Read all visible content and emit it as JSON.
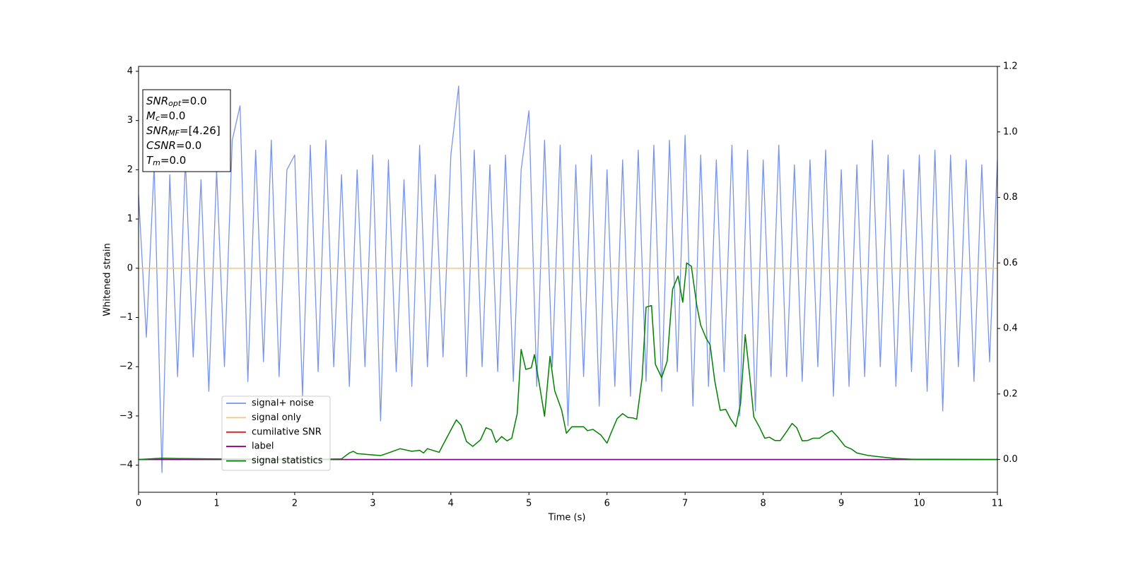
{
  "chart_data": {
    "type": "line",
    "xlabel": "Time (s)",
    "ylabel": "Whitened strain",
    "xlim": [
      0,
      11
    ],
    "xticks": [
      0,
      1,
      2,
      3,
      4,
      5,
      6,
      7,
      8,
      9,
      10,
      11
    ],
    "ylim": [
      -4.55,
      4.1
    ],
    "yticks": [
      {
        "value": -4,
        "label": "−4"
      },
      {
        "value": -3,
        "label": "−3"
      },
      {
        "value": -2,
        "label": "−2"
      },
      {
        "value": -1,
        "label": "−1"
      },
      0,
      1,
      2,
      3,
      4
    ],
    "y2lim": [
      -0.1,
      1.2
    ],
    "y2ticks": [
      {
        "value": 0,
        "label": "0.0"
      },
      {
        "value": 0.2,
        "label": "0.2"
      },
      {
        "value": 0.4,
        "label": "0.4"
      },
      {
        "value": 0.6,
        "label": "0.6"
      },
      {
        "value": 0.8,
        "label": "0.8"
      },
      {
        "value": 1.0,
        "label": "1.0"
      },
      {
        "value": 1.2,
        "label": "1.2"
      }
    ],
    "grid": false,
    "legend": "lower left",
    "annotation": [
      {
        "main": "SNR",
        "sub": "opt",
        "rest": "=0.0"
      },
      {
        "main": "M",
        "sub": "c",
        "rest": "=0.0"
      },
      {
        "main": "SNR",
        "sub": "MF",
        "rest": "=[4.26]"
      },
      {
        "main": "CSNR",
        "rest": "=0.0"
      },
      {
        "main": "T",
        "sub": "m",
        "rest": "=0.0"
      }
    ],
    "x": [
      0,
      0.1,
      0.2,
      0.3,
      0.4,
      0.5,
      0.6,
      0.7,
      0.8,
      0.9,
      1.0,
      1.1,
      1.2,
      1.3,
      1.4,
      1.5,
      1.6,
      1.7,
      1.8,
      1.9,
      2.0,
      2.1,
      2.2,
      2.3,
      2.4,
      2.5,
      2.6,
      2.7,
      2.8,
      2.9,
      3.0,
      3.1,
      3.2,
      3.3,
      3.4,
      3.5,
      3.6,
      3.7,
      3.8,
      3.9,
      4.0,
      4.1,
      4.2,
      4.3,
      4.4,
      4.5,
      4.6,
      4.7,
      4.8,
      4.9,
      5.0,
      5.1,
      5.2,
      5.3,
      5.4,
      5.5,
      5.6,
      5.7,
      5.8,
      5.9,
      6.0,
      6.1,
      6.2,
      6.3,
      6.4,
      6.5,
      6.6,
      6.7,
      6.8,
      6.9,
      7.0,
      7.1,
      7.2,
      7.3,
      7.4,
      7.5,
      7.6,
      7.7,
      7.8,
      7.9,
      8.0,
      8.1,
      8.2,
      8.3,
      8.4,
      8.5,
      8.6,
      8.7,
      8.8,
      8.9,
      9.0,
      9.1,
      9.2,
      9.3,
      9.4,
      9.5,
      9.6,
      9.7,
      9.8,
      9.9,
      10.0,
      10.1,
      10.2,
      10.3,
      10.4,
      10.5,
      10.6,
      10.7,
      10.8,
      10.9,
      11.0
    ],
    "series": [
      {
        "name": "signal+ noise",
        "color": "#7995e9",
        "values": [
          1.5,
          -1.4,
          2.1,
          -4.15,
          1.9,
          -2.2,
          2.2,
          -1.8,
          1.8,
          -2.5,
          2.0,
          -2.0,
          2.6,
          3.3,
          -2.3,
          2.4,
          -1.9,
          2.6,
          -2.2,
          2.0,
          2.3,
          -2.6,
          2.5,
          -2.1,
          2.6,
          -2.0,
          1.9,
          -2.4,
          2.0,
          -2.0,
          2.3,
          -3.1,
          2.2,
          -2.1,
          1.8,
          -2.4,
          2.5,
          -2.0,
          1.9,
          -1.8,
          2.3,
          3.7,
          -2.2,
          2.4,
          -2.0,
          2.1,
          -2.1,
          2.3,
          -2.3,
          2.0,
          3.2,
          -2.4,
          2.6,
          -2.0,
          2.5,
          -3.2,
          2.1,
          -2.2,
          2.3,
          -2.8,
          2.0,
          -2.4,
          2.2,
          -2.6,
          2.4,
          -2.3,
          2.5,
          -2.5,
          2.6,
          -2.1,
          2.7,
          -2.8,
          2.3,
          -2.4,
          2.2,
          -2.1,
          2.5,
          -3.0,
          2.4,
          -2.9,
          2.2,
          -2.2,
          2.5,
          -2.2,
          2.1,
          -2.3,
          2.2,
          -2.0,
          2.4,
          -2.6,
          2.0,
          -2.4,
          2.1,
          -2.2,
          2.6,
          -2.0,
          2.3,
          -2.4,
          2.0,
          -2.1,
          2.3,
          -2.5,
          2.4,
          -2.9,
          2.3,
          -2.0,
          2.2,
          -2.3,
          2.1,
          -1.9,
          2.2
        ]
      },
      {
        "name": "signal only",
        "color": "#f5c57a",
        "x": [
          0,
          11
        ],
        "values": [
          0,
          0
        ]
      },
      {
        "name": "cumilative SNR",
        "color": "#e41a1c",
        "axis": "y2",
        "x": [
          0,
          11
        ],
        "values": [
          0,
          0
        ]
      },
      {
        "name": "label",
        "color": "#800080",
        "axis": "y2",
        "x": [
          0,
          11
        ],
        "values": [
          0,
          0
        ]
      },
      {
        "name": "signal statistics",
        "color": "#008000",
        "axis": "y2",
        "x": [
          0,
          0.3,
          0.5,
          1.0,
          1.5,
          2.0,
          2.4,
          2.6,
          2.7,
          2.75,
          2.8,
          3.0,
          3.1,
          3.2,
          3.35,
          3.5,
          3.6,
          3.65,
          3.7,
          3.85,
          3.9,
          4.0,
          4.07,
          4.13,
          4.2,
          4.28,
          4.38,
          4.45,
          4.52,
          4.58,
          4.65,
          4.72,
          4.78,
          4.85,
          4.9,
          4.96,
          5.03,
          5.07,
          5.14,
          5.2,
          5.27,
          5.33,
          5.42,
          5.48,
          5.55,
          5.7,
          5.75,
          5.82,
          5.92,
          6.0,
          6.05,
          6.13,
          6.2,
          6.27,
          6.33,
          6.38,
          6.45,
          6.5,
          6.57,
          6.62,
          6.7,
          6.77,
          6.84,
          6.91,
          6.97,
          7.02,
          7.08,
          7.15,
          7.2,
          7.27,
          7.32,
          7.38,
          7.45,
          7.52,
          7.58,
          7.65,
          7.71,
          7.77,
          7.83,
          7.88,
          7.95,
          8.02,
          8.08,
          8.15,
          8.22,
          8.3,
          8.37,
          8.43,
          8.5,
          8.57,
          8.64,
          8.72,
          8.8,
          8.88,
          8.95,
          9.05,
          9.13,
          9.2,
          9.35,
          9.5,
          9.7,
          9.9,
          11
        ],
        "values": [
          0,
          0.004,
          0.003,
          0.002,
          0.001,
          0.001,
          0.001,
          0.002,
          0.02,
          0.025,
          0.018,
          0.014,
          0.012,
          0.02,
          0.033,
          0.025,
          0.028,
          0.02,
          0.033,
          0.022,
          0.045,
          0.09,
          0.121,
          0.105,
          0.055,
          0.04,
          0.06,
          0.097,
          0.09,
          0.052,
          0.07,
          0.057,
          0.065,
          0.14,
          0.336,
          0.275,
          0.28,
          0.32,
          0.22,
          0.132,
          0.315,
          0.21,
          0.15,
          0.08,
          0.1,
          0.1,
          0.088,
          0.092,
          0.075,
          0.05,
          0.08,
          0.125,
          0.14,
          0.128,
          0.127,
          0.123,
          0.25,
          0.465,
          0.47,
          0.29,
          0.25,
          0.3,
          0.52,
          0.56,
          0.48,
          0.6,
          0.59,
          0.47,
          0.41,
          0.37,
          0.35,
          0.24,
          0.15,
          0.153,
          0.125,
          0.1,
          0.17,
          0.381,
          0.25,
          0.13,
          0.1,
          0.065,
          0.068,
          0.058,
          0.058,
          0.085,
          0.11,
          0.097,
          0.057,
          0.058,
          0.065,
          0.065,
          0.078,
          0.088,
          0.07,
          0.04,
          0.032,
          0.02,
          0.012,
          0.008,
          0.003,
          0.001,
          0
        ]
      }
    ]
  }
}
